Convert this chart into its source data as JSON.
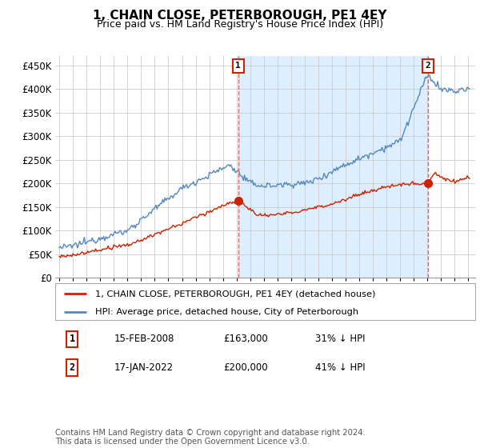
{
  "title": "1, CHAIN CLOSE, PETERBOROUGH, PE1 4EY",
  "subtitle": "Price paid vs. HM Land Registry's House Price Index (HPI)",
  "title_fontsize": 11,
  "subtitle_fontsize": 9,
  "ylabel_ticks": [
    "£0",
    "£50K",
    "£100K",
    "£150K",
    "£200K",
    "£250K",
    "£300K",
    "£350K",
    "£400K",
    "£450K"
  ],
  "ytick_values": [
    0,
    50000,
    100000,
    150000,
    200000,
    250000,
    300000,
    350000,
    400000,
    450000
  ],
  "ylim": [
    0,
    470000
  ],
  "xlim_start": 1994.7,
  "xlim_end": 2025.5,
  "legend_line1": "1, CHAIN CLOSE, PETERBOROUGH, PE1 4EY (detached house)",
  "legend_line2": "HPI: Average price, detached house, City of Peterborough",
  "marker1_label": "1",
  "marker1_date": "15-FEB-2008",
  "marker1_price": "£163,000",
  "marker1_hpi": "31% ↓ HPI",
  "marker1_x": 2008.12,
  "marker1_y": 163000,
  "marker2_label": "2",
  "marker2_date": "17-JAN-2022",
  "marker2_price": "£200,000",
  "marker2_hpi": "41% ↓ HPI",
  "marker2_x": 2022.04,
  "marker2_y": 200000,
  "footnote": "Contains HM Land Registry data © Crown copyright and database right 2024.\nThis data is licensed under the Open Government Licence v3.0.",
  "hpi_color": "#5588bb",
  "price_color": "#cc2200",
  "vline_color": "#dd6666",
  "shade_color": "#ddeeff",
  "background_color": "#ffffff",
  "grid_color": "#cccccc"
}
